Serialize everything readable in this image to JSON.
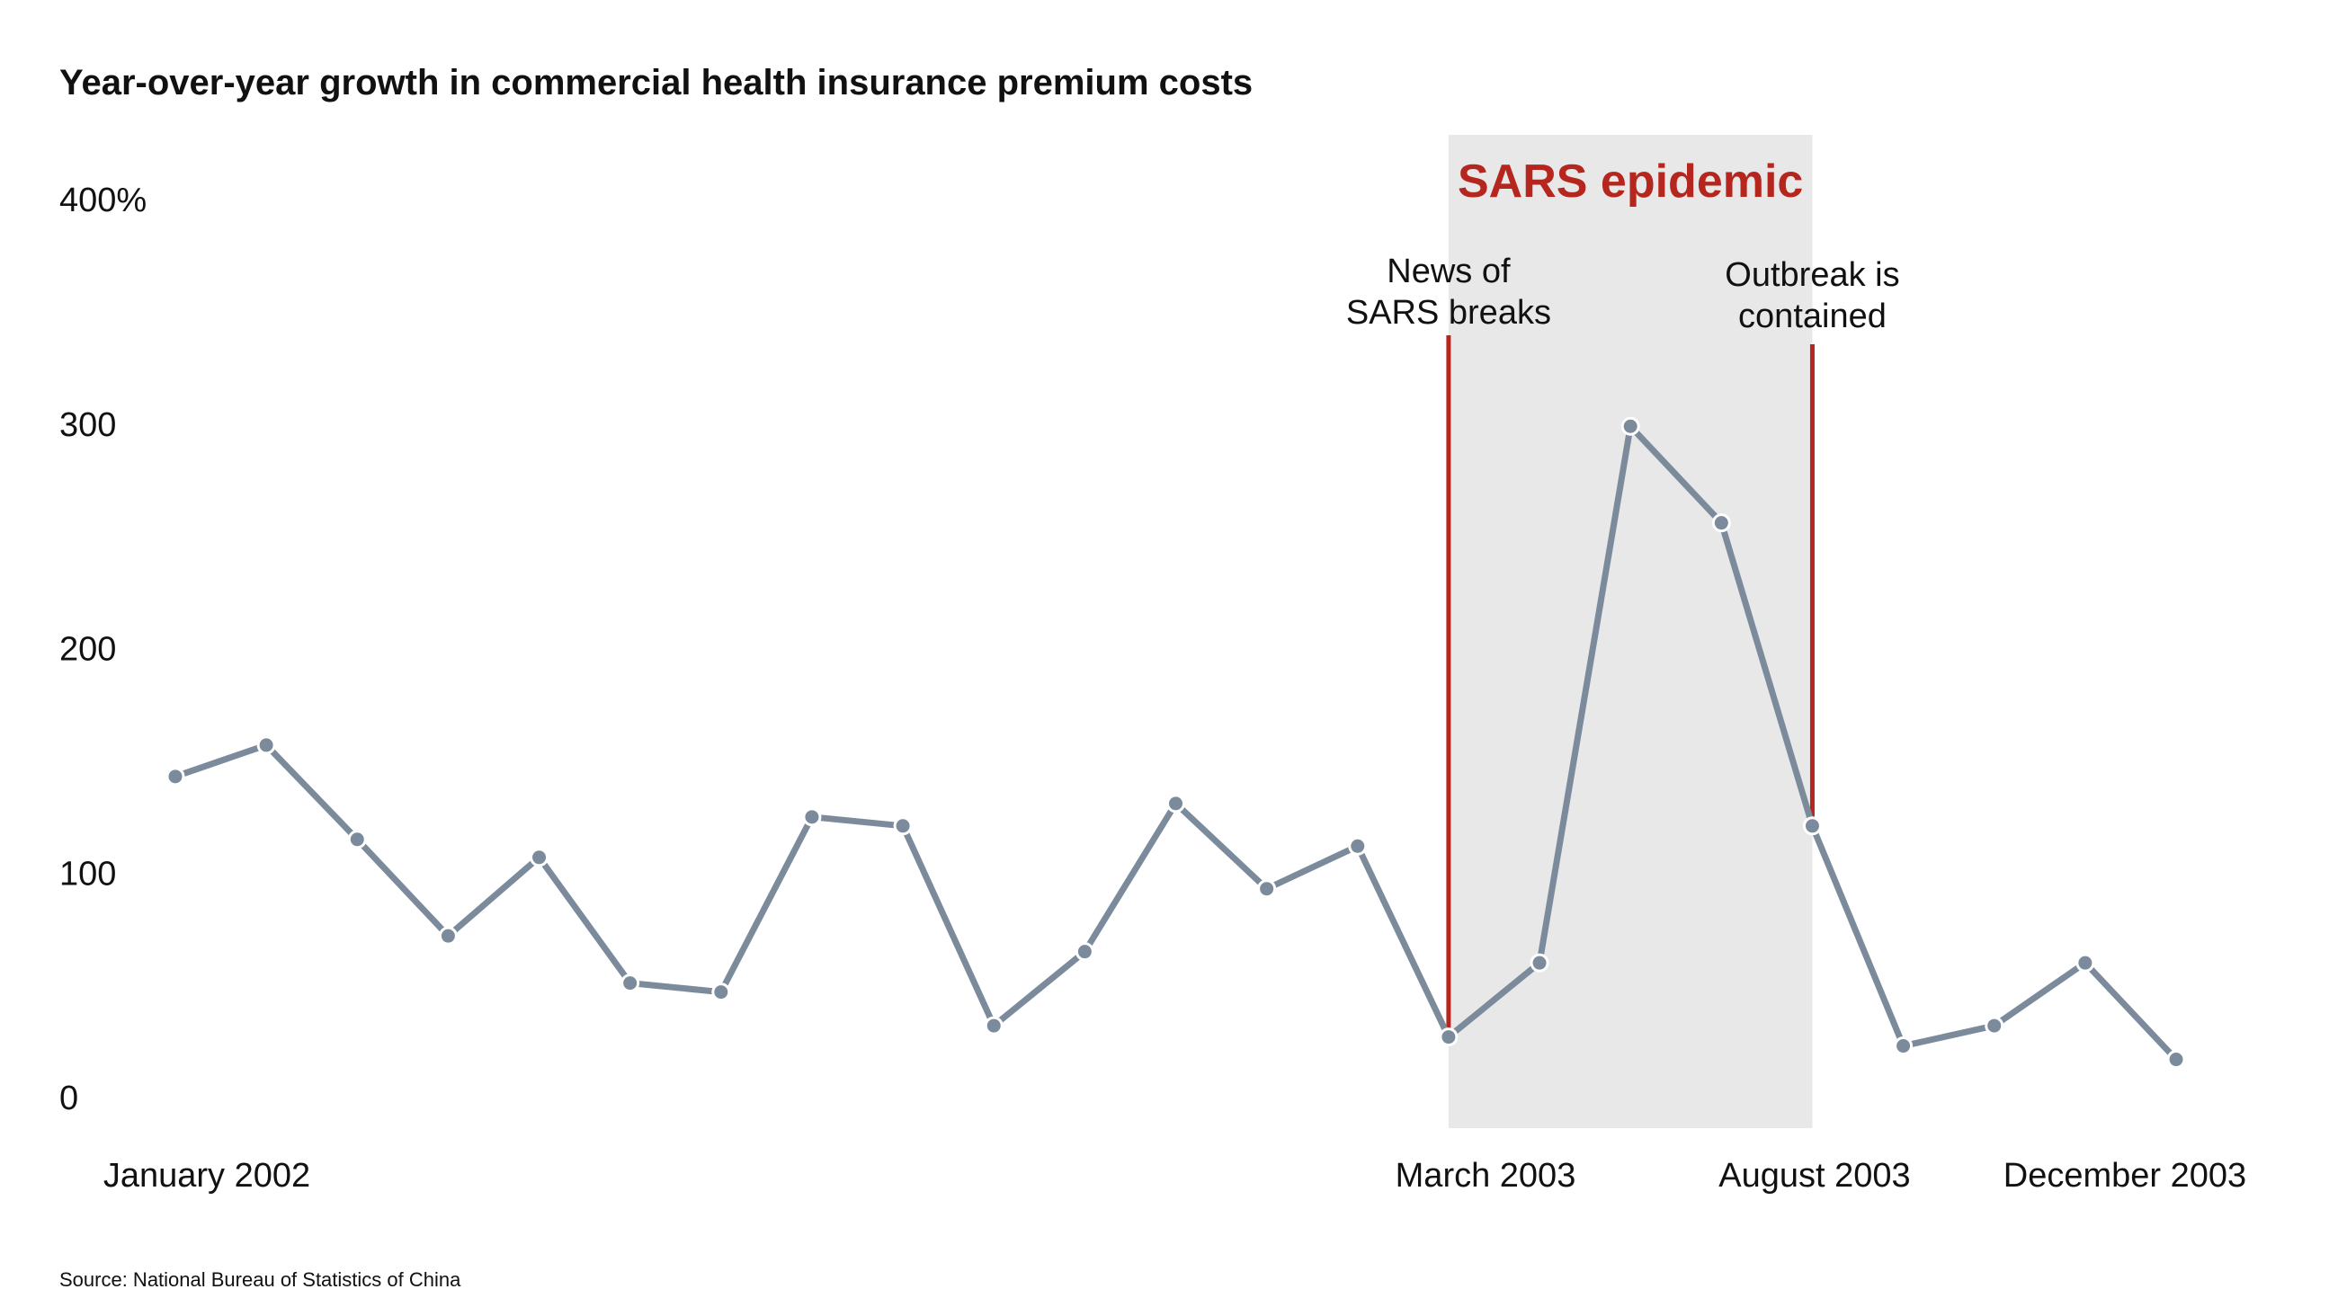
{
  "chart_data": {
    "type": "line",
    "title": "Year-over-year growth in commercial health insurance premium costs",
    "source": "Source: National Bureau of Statistics of China",
    "x_labels": [
      {
        "label": "January 2002",
        "index": 0
      },
      {
        "label": "March 2003",
        "index": 14
      },
      {
        "label": "August 2003",
        "index": 18
      },
      {
        "label": "December 2003",
        "index": 22
      }
    ],
    "y_ticks": [
      {
        "label": "0",
        "value": 0
      },
      {
        "label": "100",
        "value": 100
      },
      {
        "label": "200",
        "value": 200
      },
      {
        "label": "300",
        "value": 300
      },
      {
        "label": "400%",
        "value": 400
      }
    ],
    "ylim": [
      0,
      400
    ],
    "grid": false,
    "series": [
      {
        "values": [
          143,
          157,
          115,
          72,
          107,
          51,
          47,
          125,
          121,
          32,
          65,
          131,
          93,
          112,
          27,
          60,
          299,
          256,
          121,
          23,
          32,
          60,
          17
        ],
        "color": "#7b8b9c"
      }
    ],
    "highlight": {
      "label": "SARS epidemic",
      "start_index": 14,
      "end_index": 18,
      "color": "#b5271e",
      "shade_color": "#e8e8e8"
    },
    "annotations": [
      {
        "index": 14,
        "lines": [
          "News of",
          "SARS breaks"
        ]
      },
      {
        "index": 18,
        "lines": [
          "Outbreak is",
          "contained"
        ]
      }
    ]
  }
}
